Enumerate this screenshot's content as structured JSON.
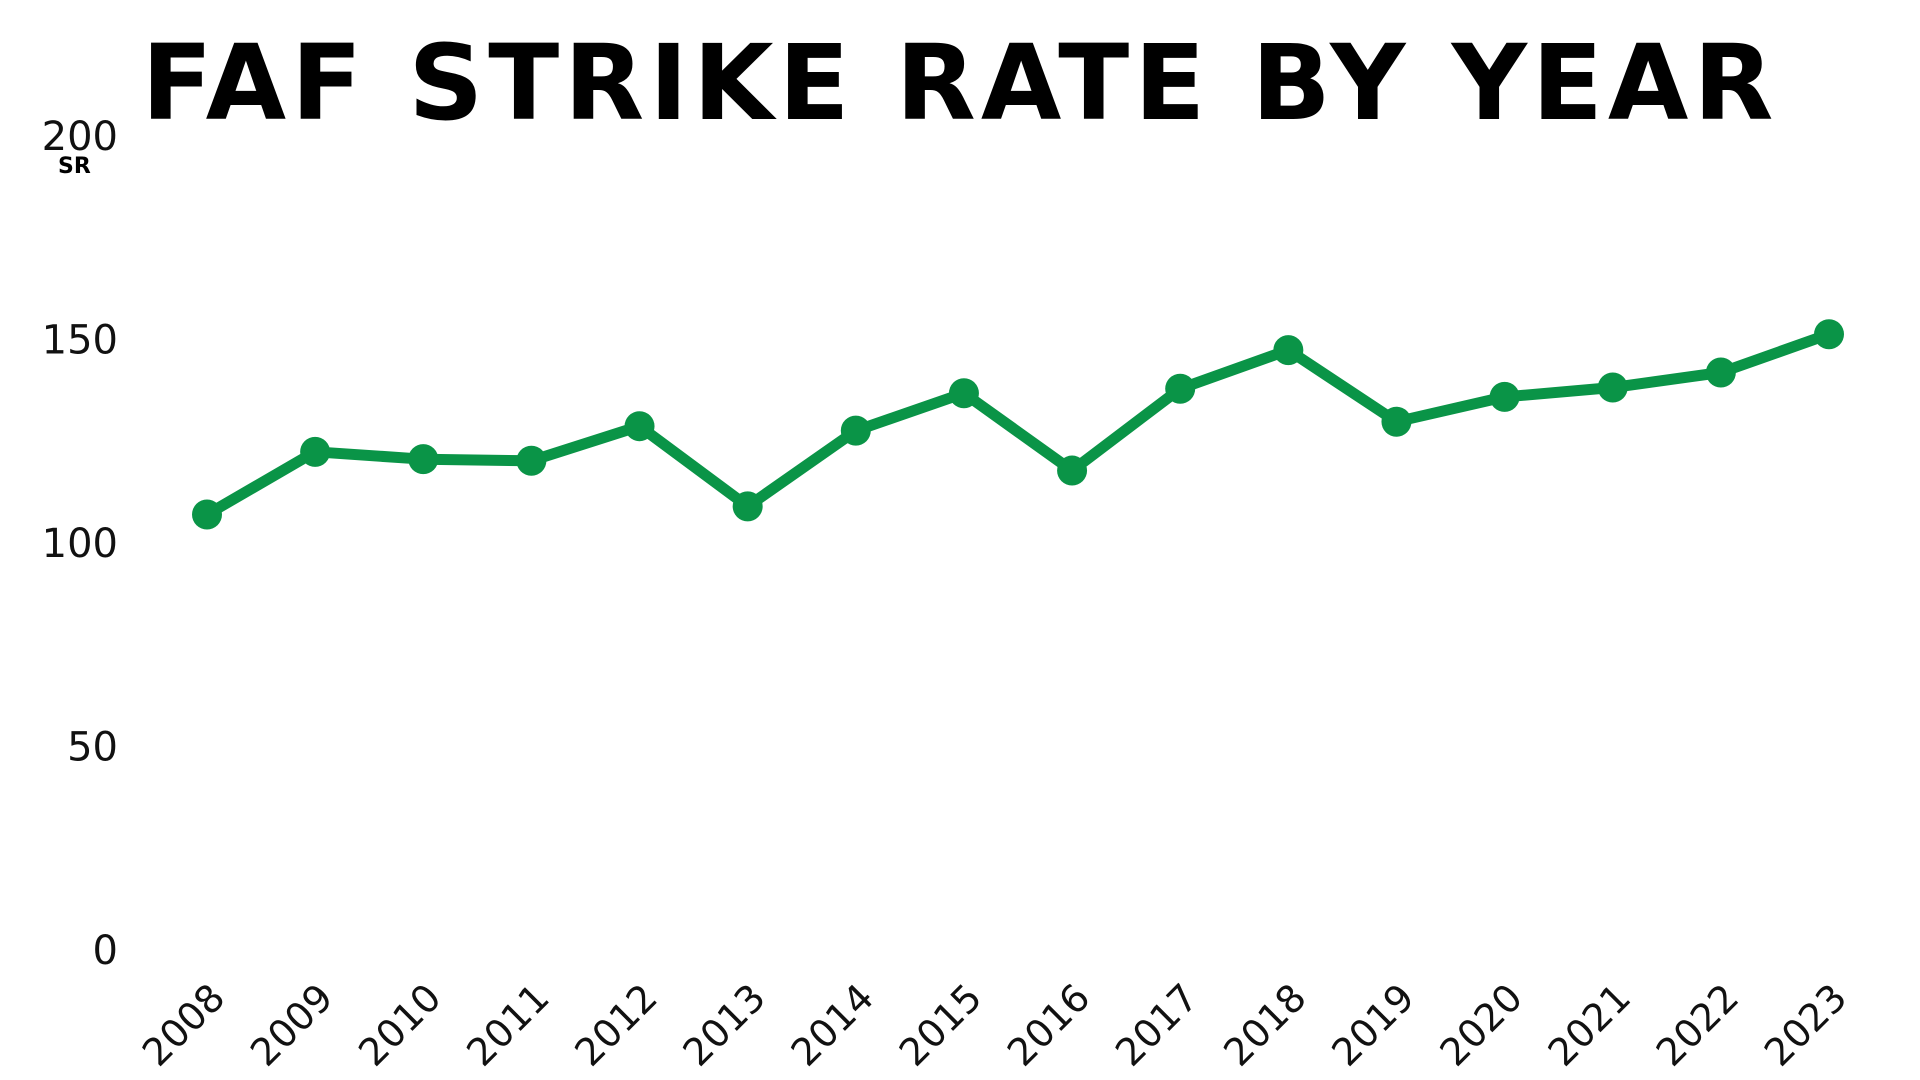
{
  "chart_data": {
    "type": "line",
    "title": "FAF STRIKE RATE BY YEAR",
    "ylabel": "SR",
    "xlabel": "",
    "ylim": [
      0,
      200
    ],
    "yticks": [
      "0",
      "50",
      "100",
      "150",
      "200"
    ],
    "grid": false,
    "legend": "none",
    "categories": [
      "2008",
      "2009",
      "2010",
      "2011",
      "2012",
      "2013",
      "2014",
      "2015",
      "2016",
      "2017",
      "2018",
      "2019",
      "2020",
      "2021",
      "2022",
      "2023"
    ],
    "series": [
      {
        "color": "#0a9447",
        "values": [
          107,
          122.4,
          120.6,
          120.2,
          128.7,
          109,
          127.6,
          136.8,
          117.8,
          137.9,
          147.4,
          129.8,
          135.9,
          138.2,
          141.9,
          151.3
        ]
      }
    ]
  }
}
